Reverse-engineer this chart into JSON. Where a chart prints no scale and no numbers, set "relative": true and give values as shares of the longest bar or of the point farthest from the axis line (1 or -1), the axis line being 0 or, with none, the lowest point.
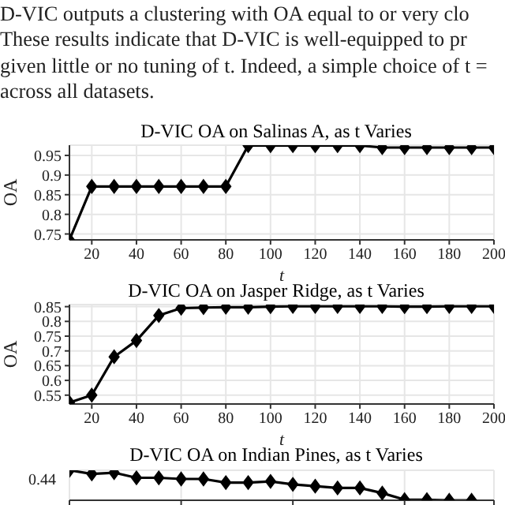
{
  "chart_data": [
    {
      "type": "line",
      "title": "D-VIC OA on Salinas A, as t Varies",
      "xlabel": "t",
      "ylabel": "OA",
      "annotations": [
        "D-VIC outputs a clustering with OA equal to or very clo",
        "These results indicate that D-VIC is well-equipped to pr",
        "given little or no tuning of t. Indeed, a simple choice of t =",
        "across all datasets."
      ],
      "x": [
        10,
        20,
        30,
        40,
        50,
        60,
        70,
        80,
        90,
        100,
        110,
        120,
        130,
        140,
        150,
        160,
        170,
        180,
        190,
        200
      ],
      "series": [
        {
          "color": "#000000",
          "values": [
            0.735,
            0.871,
            0.871,
            0.871,
            0.871,
            0.871,
            0.871,
            0.871,
            0.975,
            0.975,
            0.975,
            0.975,
            0.975,
            0.975,
            0.97,
            0.97,
            0.97,
            0.97,
            0.97,
            0.97
          ]
        }
      ],
      "xlim": [
        10,
        200
      ],
      "xticks": [
        20,
        40,
        60,
        80,
        100,
        120,
        140,
        160,
        180,
        200
      ],
      "ylim": [
        0.735,
        0.976
      ],
      "yticks": [
        0.75,
        0.8,
        0.85,
        0.9,
        0.95
      ],
      "grid": true,
      "marker": "diamond",
      "line_style": "solid"
    },
    {
      "type": "line",
      "title": "D-VIC OA on Jasper Ridge, as t Varies",
      "xlabel": "t",
      "ylabel": "OA",
      "x": [
        10,
        20,
        30,
        40,
        50,
        60,
        70,
        80,
        90,
        100,
        110,
        120,
        130,
        140,
        150,
        160,
        170,
        180,
        190,
        200
      ],
      "series": [
        {
          "color": "#000000",
          "values": [
            0.525,
            0.55,
            0.68,
            0.735,
            0.82,
            0.845,
            0.847,
            0.848,
            0.848,
            0.85,
            0.851,
            0.851,
            0.851,
            0.851,
            0.851,
            0.85,
            0.85,
            0.851,
            0.851,
            0.851
          ]
        }
      ],
      "xlim": [
        10,
        200
      ],
      "xticks": [
        20,
        40,
        60,
        80,
        100,
        120,
        140,
        160,
        180,
        200
      ],
      "ylim": [
        0.52,
        0.857
      ],
      "yticks": [
        0.55,
        0.6,
        0.65,
        0.7,
        0.75,
        0.8,
        0.85
      ],
      "grid": true,
      "marker": "diamond",
      "line_style": "solid"
    },
    {
      "type": "line",
      "title": "D-VIC OA on Indian Pines, as t Varies",
      "x": [
        10,
        20,
        30,
        40,
        50,
        60,
        70,
        80,
        90,
        100,
        110,
        120,
        130,
        140,
        150,
        160,
        170,
        180,
        190
      ],
      "annotations": [
        "0.44"
      ],
      "relative": true,
      "series": [
        {
          "color": "#000000",
          "values": [
            1,
            0.88,
            0.92,
            0.75,
            0.75,
            0.71,
            0.71,
            0.59,
            0.59,
            0.63,
            0.53,
            0.47,
            0.41,
            0.41,
            0.24,
            0.02,
            0.02,
            0,
            0
          ]
        }
      ],
      "xlim": [
        10,
        200
      ],
      "grid": true,
      "marker": "diamond",
      "line_style": "solid"
    }
  ]
}
